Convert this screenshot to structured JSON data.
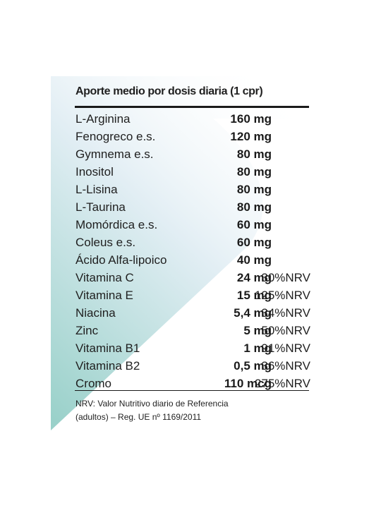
{
  "label": {
    "title": "Aporte medio por dosis diaria (1 cpr)",
    "rows": [
      {
        "name": "L-Arginina",
        "amount": "160 mg",
        "nrv": ""
      },
      {
        "name": "Fenogreco e.s.",
        "amount": "120 mg",
        "nrv": ""
      },
      {
        "name": "Gymnema e.s.",
        "amount": "80 mg",
        "nrv": ""
      },
      {
        "name": "Inositol",
        "amount": "80 mg",
        "nrv": ""
      },
      {
        "name": "L-Lisina",
        "amount": "80 mg",
        "nrv": ""
      },
      {
        "name": "L-Taurina",
        "amount": "80 mg",
        "nrv": ""
      },
      {
        "name": "Momórdica e.s.",
        "amount": "60 mg",
        "nrv": ""
      },
      {
        "name": "Coleus e.s.",
        "amount": "60 mg",
        "nrv": ""
      },
      {
        "name": "Ácido Alfa-lipoico",
        "amount": "40 mg",
        "nrv": ""
      },
      {
        "name": "Vitamina C",
        "amount": "24 mg",
        "nrv": "30%NRV"
      },
      {
        "name": "Vitamina E",
        "amount": "15 mg",
        "nrv": "125%NRV"
      },
      {
        "name": "Niacina",
        "amount": "5,4 mg",
        "nrv": "34%NRV"
      },
      {
        "name": "Zinc",
        "amount": "5 mg",
        "nrv": "50%NRV"
      },
      {
        "name": "Vitamina B1",
        "amount": "1 mg",
        "nrv": "91%NRV"
      },
      {
        "name": "Vitamina B2",
        "amount": "0,5 mg",
        "nrv": "36%NRV"
      },
      {
        "name": "Cromo",
        "amount": "110 mcg",
        "nrv": "275%NRV"
      }
    ],
    "footnote_line1": "NRV: Valor Nutritivo diario de Referencia",
    "footnote_line2": "(adultos) – Reg. UE nº 1169/2011"
  },
  "colors": {
    "background": "#ffffff",
    "text": "#1f1f1f",
    "gradient_top": "#ffffff",
    "gradient_mid": "#d6e8f0",
    "gradient_bottom": "#9cd2cc"
  }
}
